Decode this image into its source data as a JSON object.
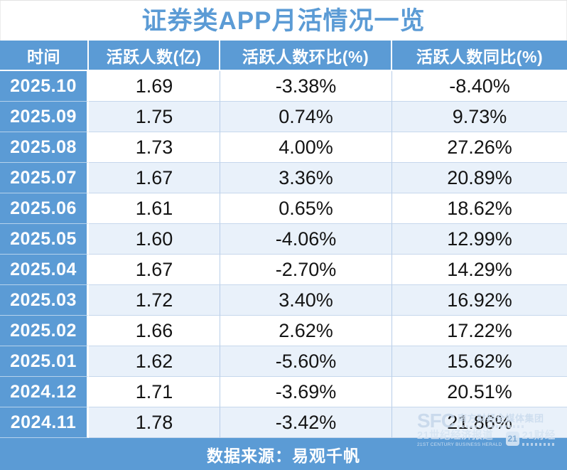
{
  "title": "证券类APP月活情况一览",
  "accent_blue": "#5b9bd5",
  "row_alt_color": "#e9f1fa",
  "table": {
    "columns": [
      "时间",
      "活跃人数(亿)",
      "活跃人数环比(%)",
      "活跃人数同比(%)"
    ],
    "rows": [
      [
        "2025.10",
        "1.69",
        "-3.38%",
        "-8.40%"
      ],
      [
        "2025.09",
        "1.75",
        "0.74%",
        "9.73%"
      ],
      [
        "2025.08",
        "1.73",
        "4.00%",
        "27.26%"
      ],
      [
        "2025.07",
        "1.67",
        "3.36%",
        "20.89%"
      ],
      [
        "2025.06",
        "1.61",
        "0.65%",
        "18.62%"
      ],
      [
        "2025.05",
        "1.60",
        "-4.06%",
        "12.99%"
      ],
      [
        "2025.04",
        "1.67",
        "-2.70%",
        "14.29%"
      ],
      [
        "2025.03",
        "1.72",
        "3.40%",
        "16.92%"
      ],
      [
        "2025.02",
        "1.66",
        "2.62%",
        "17.22%"
      ],
      [
        "2025.01",
        "1.62",
        "-5.60%",
        "15.62%"
      ],
      [
        "2024.12",
        "1.71",
        "-3.69%",
        "20.51%"
      ],
      [
        "2024.11",
        "1.78",
        "-3.42%",
        "21.86%"
      ]
    ]
  },
  "footer": {
    "source_label": "数据来源：易观千帆"
  },
  "watermark": {
    "sfc": "SFC",
    "group_cn": "南方财经全媒体集团",
    "herald_cn": "21世纪经济报道",
    "herald_en": "21ST CENTURY BUSINESS HERALD",
    "logo_21": "21",
    "finance_cn": "21财经"
  },
  "chart_data": {
    "type": "table",
    "title": "证券类APP月活情况一览",
    "columns": [
      "时间",
      "活跃人数(亿)",
      "活跃人数环比(%)",
      "活跃人数同比(%)"
    ],
    "months": [
      "2025.10",
      "2025.09",
      "2025.08",
      "2025.07",
      "2025.06",
      "2025.05",
      "2025.04",
      "2025.03",
      "2025.02",
      "2025.01",
      "2024.12",
      "2024.11"
    ],
    "series": [
      {
        "name": "活跃人数(亿)",
        "values": [
          1.69,
          1.75,
          1.73,
          1.67,
          1.61,
          1.6,
          1.67,
          1.72,
          1.66,
          1.62,
          1.71,
          1.78
        ]
      },
      {
        "name": "活跃人数环比(%)",
        "values": [
          -3.38,
          0.74,
          4.0,
          3.36,
          0.65,
          -4.06,
          -2.7,
          3.4,
          2.62,
          -5.6,
          -3.69,
          -3.42
        ]
      },
      {
        "name": "活跃人数同比(%)",
        "values": [
          -8.4,
          9.73,
          27.26,
          20.89,
          18.62,
          12.99,
          14.29,
          16.92,
          17.22,
          15.62,
          20.51,
          21.86
        ]
      }
    ],
    "source": "数据来源：易观千帆"
  }
}
